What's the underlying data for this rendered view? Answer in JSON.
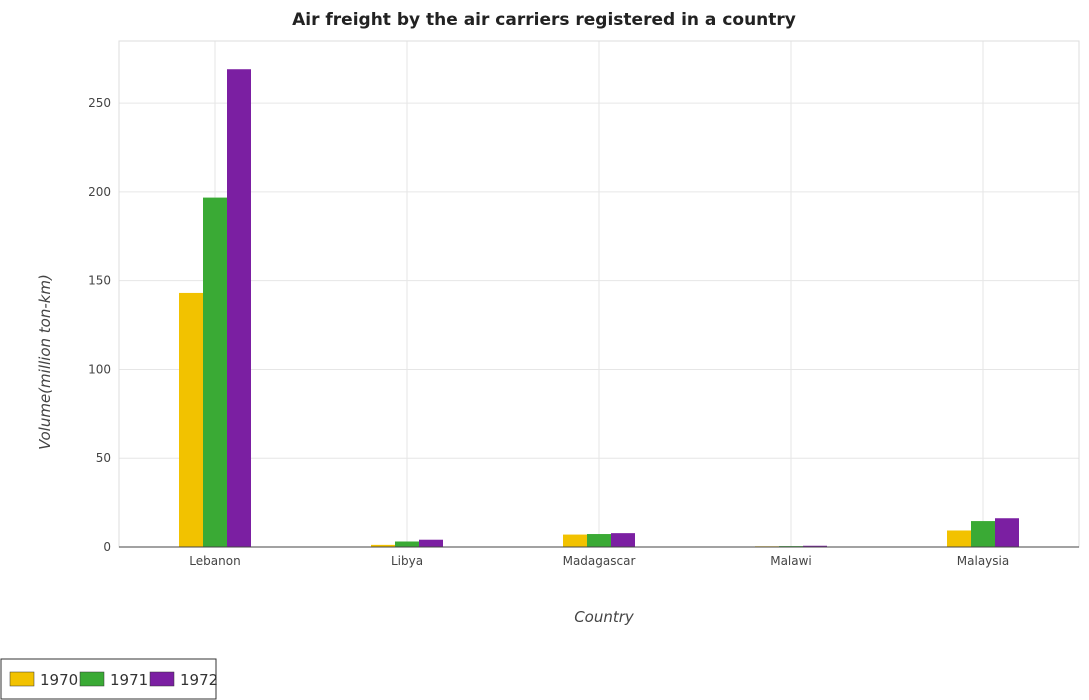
{
  "chart_data": {
    "type": "bar",
    "title": "Air freight by the air carriers registered in a country",
    "xlabel": "Country",
    "ylabel": "Volume(million ton-km)",
    "categories": [
      "Lebanon",
      "Libya",
      "Madagascar",
      "Malawi",
      "Malaysia"
    ],
    "series": [
      {
        "name": "1970",
        "color": "#f2c200",
        "values": [
          143.1,
          1.2,
          7.0,
          0.4,
          9.3
        ]
      },
      {
        "name": "1971",
        "color": "#3aaa35",
        "values": [
          196.8,
          3.1,
          7.3,
          0.5,
          14.6
        ]
      },
      {
        "name": "1972",
        "color": "#7b1fa2",
        "values": [
          269.1,
          4.1,
          7.8,
          0.7,
          16.2
        ]
      }
    ],
    "ylim": [
      0,
      285
    ],
    "yticks": [
      0,
      50,
      100,
      150,
      200,
      250
    ],
    "grid": true,
    "legend_position": "bottom-left"
  }
}
